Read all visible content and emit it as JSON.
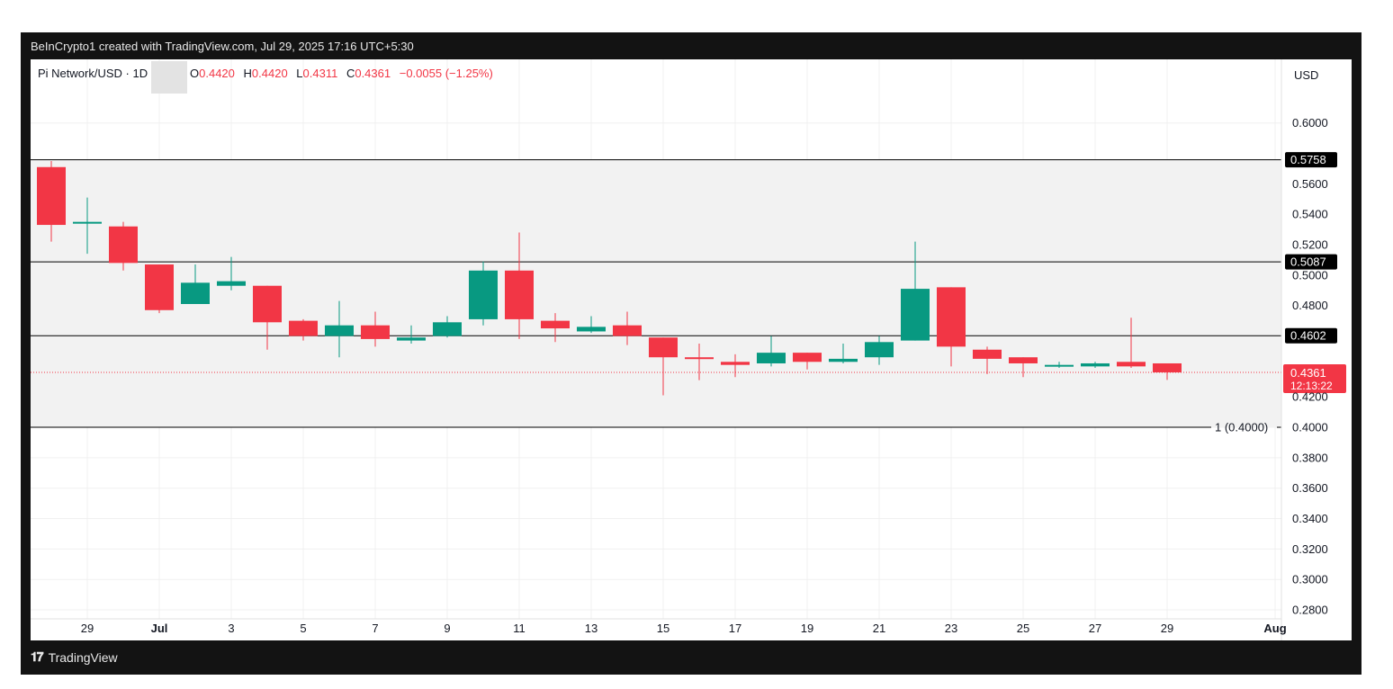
{
  "header": {
    "attribution": "BeInCrypto1 created with TradingView.com, Jul 29, 2025 17:16 UTC+5:30"
  },
  "legend": {
    "symbol": "Pi Network/USD · 1D",
    "o_label": "O",
    "o_value": "0.4420",
    "h_label": "H",
    "h_value": "0.4420",
    "l_label": "L",
    "l_value": "0.4311",
    "c_label": "C",
    "c_value": "0.4361",
    "change": "−0.0055 (−1.25%)"
  },
  "footer": {
    "brand": "TradingView"
  },
  "colors": {
    "up": "#089981",
    "down": "#f23645",
    "line": "#000000",
    "zone": "#f2f2f2"
  },
  "chart_data": {
    "type": "candlestick",
    "currency_label": "USD",
    "ylim": [
      0.2741,
      0.6418
    ],
    "y_ticks": [
      0.6,
      0.56,
      0.54,
      0.52,
      0.5,
      0.48,
      0.42,
      0.4,
      0.38,
      0.36,
      0.34,
      0.32,
      0.3,
      0.28
    ],
    "y_tick_labels": [
      "0.6000",
      "0.5600",
      "0.5400",
      "0.5200",
      "0.5000",
      "0.4800",
      "0.4200",
      "0.4000",
      "0.3800",
      "0.3600",
      "0.3400",
      "0.3200",
      "0.3000",
      "0.2800"
    ],
    "x_tick_labels": [
      "29",
      "Jul",
      "3",
      "5",
      "7",
      "9",
      "11",
      "13",
      "15",
      "17",
      "19",
      "21",
      "23",
      "25",
      "27",
      "29",
      "Aug"
    ],
    "x_tick_days": [
      -2,
      0,
      2,
      4,
      6,
      8,
      10,
      12,
      14,
      16,
      18,
      20,
      22,
      24,
      26,
      28,
      31
    ],
    "candles": [
      {
        "day": -3,
        "open": 0.571,
        "high": 0.575,
        "low": 0.522,
        "close": 0.533
      },
      {
        "day": -2,
        "open": 0.534,
        "high": 0.551,
        "low": 0.514,
        "close": 0.535
      },
      {
        "day": -1,
        "open": 0.532,
        "high": 0.535,
        "low": 0.503,
        "close": 0.508
      },
      {
        "day": 0,
        "open": 0.507,
        "high": 0.507,
        "low": 0.475,
        "close": 0.477
      },
      {
        "day": 1,
        "open": 0.481,
        "high": 0.507,
        "low": 0.481,
        "close": 0.495
      },
      {
        "day": 2,
        "open": 0.493,
        "high": 0.512,
        "low": 0.49,
        "close": 0.496
      },
      {
        "day": 3,
        "open": 0.493,
        "high": 0.493,
        "low": 0.451,
        "close": 0.469
      },
      {
        "day": 4,
        "open": 0.47,
        "high": 0.471,
        "low": 0.457,
        "close": 0.46
      },
      {
        "day": 5,
        "open": 0.46,
        "high": 0.483,
        "low": 0.446,
        "close": 0.467
      },
      {
        "day": 6,
        "open": 0.467,
        "high": 0.476,
        "low": 0.453,
        "close": 0.458
      },
      {
        "day": 7,
        "open": 0.457,
        "high": 0.467,
        "low": 0.455,
        "close": 0.459
      },
      {
        "day": 8,
        "open": 0.46,
        "high": 0.473,
        "low": 0.459,
        "close": 0.469
      },
      {
        "day": 9,
        "open": 0.471,
        "high": 0.509,
        "low": 0.467,
        "close": 0.503
      },
      {
        "day": 10,
        "open": 0.503,
        "high": 0.528,
        "low": 0.458,
        "close": 0.471
      },
      {
        "day": 11,
        "open": 0.47,
        "high": 0.475,
        "low": 0.456,
        "close": 0.465
      },
      {
        "day": 12,
        "open": 0.463,
        "high": 0.473,
        "low": 0.462,
        "close": 0.466
      },
      {
        "day": 13,
        "open": 0.467,
        "high": 0.476,
        "low": 0.454,
        "close": 0.46
      },
      {
        "day": 14,
        "open": 0.459,
        "high": 0.459,
        "low": 0.421,
        "close": 0.446
      },
      {
        "day": 15,
        "open": 0.446,
        "high": 0.455,
        "low": 0.431,
        "close": 0.445
      },
      {
        "day": 16,
        "open": 0.443,
        "high": 0.448,
        "low": 0.433,
        "close": 0.441
      },
      {
        "day": 17,
        "open": 0.442,
        "high": 0.46,
        "low": 0.44,
        "close": 0.449
      },
      {
        "day": 18,
        "open": 0.449,
        "high": 0.449,
        "low": 0.438,
        "close": 0.443
      },
      {
        "day": 19,
        "open": 0.443,
        "high": 0.455,
        "low": 0.442,
        "close": 0.445
      },
      {
        "day": 20,
        "open": 0.446,
        "high": 0.46,
        "low": 0.441,
        "close": 0.456
      },
      {
        "day": 21,
        "open": 0.457,
        "high": 0.522,
        "low": 0.457,
        "close": 0.491
      },
      {
        "day": 22,
        "open": 0.492,
        "high": 0.492,
        "low": 0.44,
        "close": 0.453
      },
      {
        "day": 23,
        "open": 0.451,
        "high": 0.453,
        "low": 0.435,
        "close": 0.445
      },
      {
        "day": 24,
        "open": 0.446,
        "high": 0.446,
        "low": 0.433,
        "close": 0.442
      },
      {
        "day": 25,
        "open": 0.44,
        "high": 0.443,
        "low": 0.439,
        "close": 0.441
      },
      {
        "day": 26,
        "open": 0.44,
        "high": 0.443,
        "low": 0.439,
        "close": 0.442
      },
      {
        "day": 27,
        "open": 0.443,
        "high": 0.472,
        "low": 0.439,
        "close": 0.44
      },
      {
        "day": 28,
        "open": 0.442,
        "high": 0.442,
        "low": 0.4311,
        "close": 0.4361
      }
    ],
    "levels": [
      {
        "value": 0.5758,
        "label": "0.5758"
      },
      {
        "value": 0.5087,
        "label": "0.5087"
      },
      {
        "value": 0.4602,
        "label": "0.4602"
      },
      {
        "value": 0.4,
        "label": "1 (0.4000)"
      }
    ],
    "zone": {
      "top": 0.5758,
      "bottom": 0.4
    },
    "current_price": {
      "value": 0.4361,
      "label": "0.4361",
      "countdown": "12:13:22"
    },
    "grid": true
  }
}
